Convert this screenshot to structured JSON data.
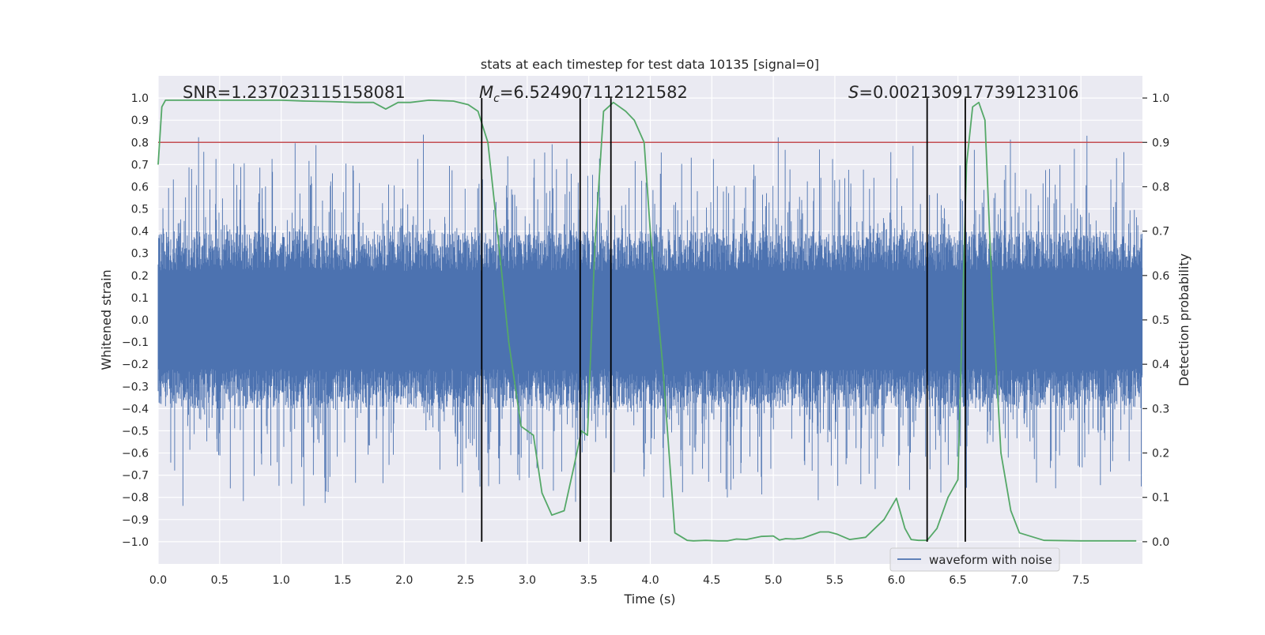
{
  "chart_data": {
    "type": "line",
    "title": "stats at each timestep for test data 10135 [signal=0]",
    "xlabel": "Time (s)",
    "ylabel": "Whitened strain",
    "y2label": "Detection probability",
    "xlim": [
      0.0,
      8.0
    ],
    "ylim": [
      -1.1,
      1.1
    ],
    "y2lim": [
      -0.05,
      1.05
    ],
    "xticks": [
      0.0,
      0.5,
      1.0,
      1.5,
      2.0,
      2.5,
      3.0,
      3.5,
      4.0,
      4.5,
      5.0,
      5.5,
      6.0,
      6.5,
      7.0,
      7.5
    ],
    "xtick_labels": [
      "0.0",
      "0.5",
      "1.0",
      "1.5",
      "2.0",
      "2.5",
      "3.0",
      "3.5",
      "4.0",
      "4.5",
      "5.0",
      "5.5",
      "6.0",
      "6.5",
      "7.0",
      "7.5"
    ],
    "yticks": [
      -1.0,
      -0.9,
      -0.8,
      -0.7,
      -0.6,
      -0.5,
      -0.4,
      -0.3,
      -0.2,
      -0.1,
      0.0,
      0.1,
      0.2,
      0.3,
      0.4,
      0.5,
      0.6,
      0.7,
      0.8,
      0.9,
      1.0
    ],
    "ytick_labels": [
      "−1.0",
      "−0.9",
      "−0.8",
      "−0.7",
      "−0.6",
      "−0.5",
      "−0.4",
      "−0.3",
      "−0.2",
      "−0.1",
      "0.0",
      "0.1",
      "0.2",
      "0.3",
      "0.4",
      "0.5",
      "0.6",
      "0.7",
      "0.8",
      "0.9",
      "1.0"
    ],
    "y2ticks": [
      0.0,
      0.1,
      0.2,
      0.3,
      0.4,
      0.5,
      0.6,
      0.7,
      0.8,
      0.9,
      1.0
    ],
    "y2tick_labels": [
      "0.0",
      "0.1",
      "0.2",
      "0.3",
      "0.4",
      "0.5",
      "0.6",
      "0.7",
      "0.8",
      "0.9",
      "1.0"
    ],
    "grid": true,
    "legend": {
      "position": "bottom-right",
      "entries": [
        "waveform with noise"
      ]
    },
    "annotations": {
      "snr": "SNR=1.237023115158081",
      "mc_symbol": "M",
      "mc_sub": "c",
      "mc_value": "=6.524907112121582",
      "s_symbol": "S",
      "s_value": "=0.002130917739123106"
    },
    "series": [
      {
        "name": "waveform with noise",
        "axis": "left",
        "color": "#4c72b0",
        "kind": "noise-band",
        "core_amplitude": 0.4,
        "max_amplitude": 1.0,
        "seed": 10135,
        "duration_s": 8.0
      },
      {
        "name": "detection probability",
        "axis": "right",
        "color": "#55a868",
        "x": [
          0.0,
          0.03,
          0.06,
          0.1,
          0.2,
          0.4,
          0.6,
          0.8,
          1.0,
          1.2,
          1.4,
          1.6,
          1.75,
          1.85,
          1.95,
          2.05,
          2.2,
          2.4,
          2.52,
          2.6,
          2.68,
          2.75,
          2.85,
          2.95,
          3.05,
          3.12,
          3.2,
          3.3,
          3.38,
          3.44,
          3.49,
          3.55,
          3.62,
          3.7,
          3.8,
          3.87,
          3.95,
          4.0,
          4.1,
          4.2,
          4.3,
          4.35,
          4.45,
          4.55,
          4.63,
          4.7,
          4.78,
          4.9,
          5.0,
          5.05,
          5.1,
          5.17,
          5.24,
          5.3,
          5.38,
          5.45,
          5.52,
          5.62,
          5.75,
          5.9,
          6.0,
          6.07,
          6.12,
          6.18,
          6.25,
          6.33,
          6.42,
          6.5,
          6.57,
          6.62,
          6.67,
          6.72,
          6.78,
          6.85,
          6.93,
          7.0,
          7.2,
          7.5,
          7.8,
          7.95
        ],
        "values": [
          0.85,
          0.98,
          0.995,
          0.995,
          0.995,
          0.995,
          0.995,
          0.995,
          0.995,
          0.993,
          0.992,
          0.99,
          0.99,
          0.975,
          0.99,
          0.99,
          0.995,
          0.993,
          0.985,
          0.97,
          0.9,
          0.72,
          0.45,
          0.26,
          0.24,
          0.11,
          0.06,
          0.07,
          0.17,
          0.25,
          0.24,
          0.67,
          0.97,
          0.99,
          0.97,
          0.95,
          0.9,
          0.7,
          0.4,
          0.02,
          0.003,
          0.002,
          0.003,
          0.002,
          0.002,
          0.006,
          0.005,
          0.012,
          0.013,
          0.004,
          0.007,
          0.006,
          0.008,
          0.014,
          0.022,
          0.022,
          0.017,
          0.005,
          0.01,
          0.05,
          0.098,
          0.03,
          0.005,
          0.003,
          0.003,
          0.03,
          0.1,
          0.14,
          0.85,
          0.98,
          0.99,
          0.95,
          0.55,
          0.2,
          0.07,
          0.02,
          0.003,
          0.002,
          0.002,
          0.002
        ]
      }
    ],
    "threshold_line": {
      "value": 0.9,
      "axis": "right",
      "color": "#c44e52"
    },
    "event_markers": [
      2.63,
      3.43,
      3.68,
      6.25,
      6.56
    ],
    "event_marker_top": 1.0,
    "event_marker_bottom": 0.0
  }
}
